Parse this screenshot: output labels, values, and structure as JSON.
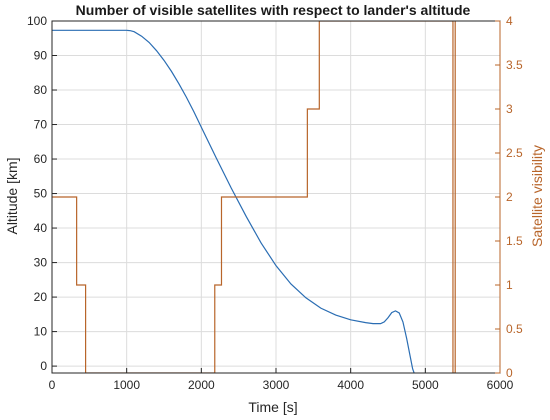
{
  "chart_data": {
    "type": "line",
    "title": "Number of visible satellites with respect to lander's altitude",
    "xlabel": "Time [s]",
    "ylabel_left": "Altitude [km]",
    "ylabel_right": "Satellite visibility",
    "xlim": [
      0,
      6000
    ],
    "ylim_left": [
      -2,
      100
    ],
    "ylim_right": [
      0,
      4
    ],
    "x_ticks": [
      "0",
      "1000",
      "2000",
      "3000",
      "4000",
      "5000",
      "6000"
    ],
    "y_left_ticks": [
      "0",
      "10",
      "20",
      "30",
      "40",
      "50",
      "60",
      "70",
      "80",
      "90",
      "100"
    ],
    "y_right_ticks": [
      "0",
      "0.5",
      "1",
      "1.5",
      "2",
      "2.5",
      "3",
      "3.5",
      "4"
    ],
    "grid": true,
    "colors": {
      "altitude": "#2a6db3",
      "visibility": "#b8652a",
      "axis": "#262626"
    },
    "series": [
      {
        "axis": "left",
        "x": [
          0,
          500,
          1000,
          1050,
          1100,
          1200,
          1300,
          1400,
          1500,
          1600,
          1700,
          1800,
          1900,
          2000,
          2200,
          2400,
          2600,
          2800,
          3000,
          3200,
          3400,
          3600,
          3800,
          4000,
          4200,
          4300,
          4400,
          4450,
          4500,
          4550,
          4600,
          4650,
          4700,
          4750,
          4800,
          4830,
          4850
        ],
        "values": [
          97.3,
          97.3,
          97.3,
          97.2,
          96.9,
          95.6,
          93.8,
          91.4,
          88.6,
          85.4,
          81.8,
          77.9,
          73.7,
          69.2,
          60.3,
          51.6,
          43.4,
          35.7,
          29.1,
          23.8,
          19.8,
          16.8,
          14.8,
          13.4,
          12.6,
          12.3,
          12.3,
          12.8,
          14.0,
          15.5,
          16.0,
          15.4,
          12.8,
          8.0,
          2.5,
          -0.8,
          -2.0
        ]
      },
      {
        "axis": "right",
        "step": true,
        "x": [
          0,
          330,
          330,
          450,
          450,
          2180,
          2180,
          2270,
          2270,
          3420,
          3420,
          3580,
          3580,
          5370,
          5370,
          5400,
          5400
        ],
        "values": [
          2,
          2,
          1,
          1,
          0,
          0,
          1,
          1,
          2,
          2,
          3,
          3,
          4,
          4,
          0,
          0,
          4
        ]
      }
    ]
  }
}
